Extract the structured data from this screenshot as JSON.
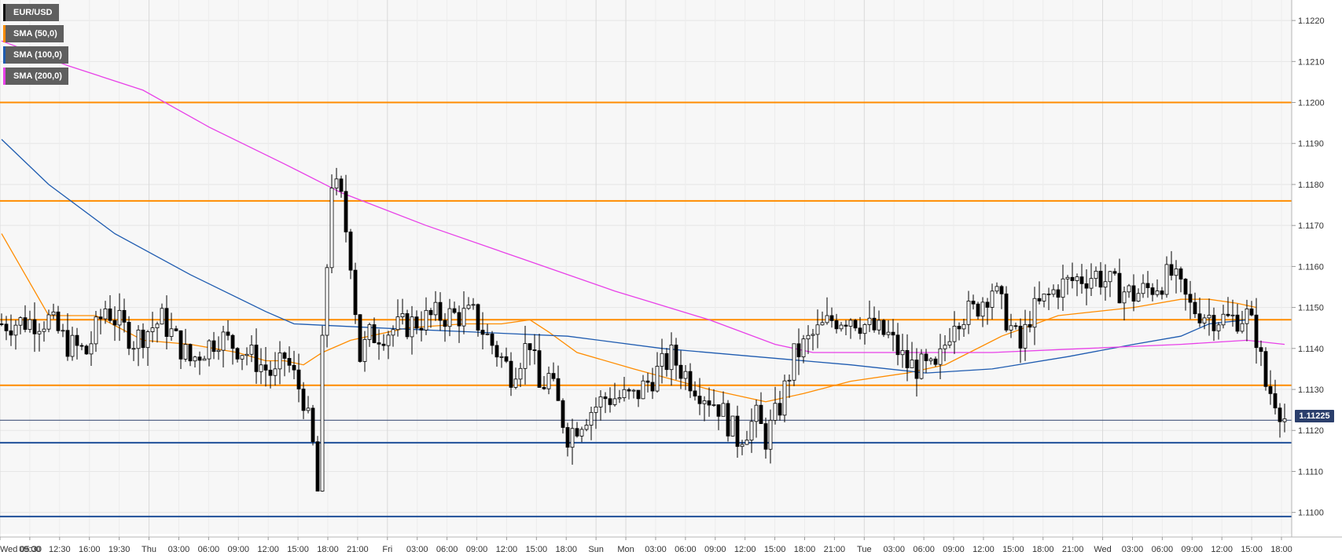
{
  "legend": [
    {
      "label": "EUR/USD",
      "color": "#000000"
    },
    {
      "label": "SMA (50,0)",
      "color": "#ff8c00"
    },
    {
      "label": "SMA (100,0)",
      "color": "#1e5bb0"
    },
    {
      "label": "SMA (200,0)",
      "color": "#e840e8"
    }
  ],
  "current_price_label": "1.11225",
  "colors": {
    "resistance": "#ff8c00",
    "support": "#1f4f99",
    "sma50": "#ff8c00",
    "sma100": "#1e5bb0",
    "sma200": "#e840e8",
    "candle_up": "#ffffff",
    "candle_down": "#000000",
    "grid": "#e6e6e6"
  },
  "chart_data": {
    "type": "candlestick",
    "title": "",
    "xlabel": "",
    "ylabel": "",
    "ylim": [
      1.1094,
      1.1225
    ],
    "y_ticks": [
      "1.1100",
      "1.1110",
      "1.1120",
      "1.1130",
      "1.1140",
      "1.1150",
      "1.1160",
      "1.1170",
      "1.1180",
      "1.1190",
      "1.1200",
      "1.1210",
      "1.1220"
    ],
    "x_tick_labels": [
      "Wed 05:30",
      "09:00",
      "12:30",
      "16:00",
      "19:30",
      "Thu",
      "03:00",
      "06:00",
      "09:00",
      "12:00",
      "15:00",
      "18:00",
      "21:00",
      "Fri",
      "03:00",
      "06:00",
      "09:00",
      "12:00",
      "15:00",
      "18:00",
      "Sun",
      "Mon",
      "03:00",
      "06:00",
      "09:00",
      "12:00",
      "15:00",
      "18:00",
      "21:00",
      "Tue",
      "03:00",
      "06:00",
      "09:00",
      "12:00",
      "15:00",
      "18:00",
      "21:00",
      "Wed",
      "03:00",
      "06:00",
      "09:00",
      "12:00",
      "15:00",
      "18:00"
    ],
    "horizontal_levels": [
      {
        "price": 1.12,
        "kind": "resistance"
      },
      {
        "price": 1.1176,
        "kind": "resistance"
      },
      {
        "price": 1.1147,
        "kind": "resistance"
      },
      {
        "price": 1.1131,
        "kind": "resistance"
      },
      {
        "price": 1.11225,
        "kind": "current"
      },
      {
        "price": 1.1117,
        "kind": "support"
      },
      {
        "price": 1.1099,
        "kind": "support"
      }
    ],
    "price_anchors": [
      [
        0,
        1.1146
      ],
      [
        10,
        1.1147
      ],
      [
        14,
        1.1141
      ],
      [
        18,
        1.1139
      ],
      [
        22,
        1.115
      ],
      [
        28,
        1.1142
      ],
      [
        34,
        1.1147
      ],
      [
        40,
        1.1137
      ],
      [
        46,
        1.1143
      ],
      [
        52,
        1.1139
      ],
      [
        58,
        1.1133
      ],
      [
        60,
        1.1138
      ],
      [
        64,
        1.1128
      ],
      [
        66,
        1.1116
      ],
      [
        67,
        1.1105
      ],
      [
        68,
        1.114
      ],
      [
        70,
        1.1181
      ],
      [
        72,
        1.1176
      ],
      [
        74,
        1.1162
      ],
      [
        76,
        1.1138
      ],
      [
        78,
        1.1143
      ],
      [
        84,
        1.1145
      ],
      [
        92,
        1.1148
      ],
      [
        100,
        1.1148
      ],
      [
        104,
        1.1141
      ],
      [
        108,
        1.1134
      ],
      [
        112,
        1.1142
      ],
      [
        114,
        1.113
      ],
      [
        116,
        1.1133
      ],
      [
        120,
        1.1119
      ],
      [
        124,
        1.1124
      ],
      [
        128,
        1.1128
      ],
      [
        134,
        1.1128
      ],
      [
        138,
        1.1133
      ],
      [
        142,
        1.1138
      ],
      [
        144,
        1.1135
      ],
      [
        148,
        1.113
      ],
      [
        152,
        1.1126
      ],
      [
        156,
        1.1118
      ],
      [
        160,
        1.1123
      ],
      [
        162,
        1.1118
      ],
      [
        165,
        1.1126
      ],
      [
        168,
        1.1138
      ],
      [
        172,
        1.1143
      ],
      [
        176,
        1.1147
      ],
      [
        180,
        1.1148
      ],
      [
        184,
        1.1145
      ],
      [
        188,
        1.1143
      ],
      [
        192,
        1.1136
      ],
      [
        196,
        1.1135
      ],
      [
        198,
        1.1134
      ],
      [
        202,
        1.1148
      ],
      [
        206,
        1.1149
      ],
      [
        210,
        1.1155
      ],
      [
        214,
        1.1145
      ],
      [
        216,
        1.114
      ],
      [
        218,
        1.1148
      ],
      [
        224,
        1.1155
      ],
      [
        228,
        1.1157
      ],
      [
        232,
        1.1158
      ],
      [
        236,
        1.1155
      ],
      [
        240,
        1.1153
      ],
      [
        244,
        1.1155
      ],
      [
        248,
        1.1158
      ],
      [
        252,
        1.115
      ],
      [
        256,
        1.1148
      ],
      [
        260,
        1.1147
      ],
      [
        264,
        1.1148
      ],
      [
        266,
        1.1143
      ],
      [
        268,
        1.1131
      ],
      [
        270,
        1.1128
      ],
      [
        272,
        1.1123
      ]
    ],
    "series": [
      {
        "name": "SMA (50,0)",
        "points": [
          [
            0,
            1.1168
          ],
          [
            10,
            1.1148
          ],
          [
            20,
            1.1148
          ],
          [
            30,
            1.1142
          ],
          [
            40,
            1.1141
          ],
          [
            50,
            1.1139
          ],
          [
            56,
            1.1137
          ],
          [
            60,
            1.1137
          ],
          [
            64,
            1.1136
          ],
          [
            68,
            1.1139
          ],
          [
            74,
            1.1142
          ],
          [
            86,
            1.1145
          ],
          [
            98,
            1.1146
          ],
          [
            106,
            1.1146
          ],
          [
            112,
            1.1147
          ],
          [
            116,
            1.1144
          ],
          [
            122,
            1.1139
          ],
          [
            134,
            1.1135
          ],
          [
            150,
            1.113
          ],
          [
            162,
            1.1127
          ],
          [
            170,
            1.1129
          ],
          [
            180,
            1.1132
          ],
          [
            192,
            1.1134
          ],
          [
            200,
            1.1136
          ],
          [
            212,
            1.1143
          ],
          [
            224,
            1.1148
          ],
          [
            240,
            1.115
          ],
          [
            250,
            1.1152
          ],
          [
            256,
            1.1152
          ],
          [
            262,
            1.1151
          ],
          [
            266,
            1.115
          ]
        ]
      },
      {
        "name": "SMA (100,0)",
        "points": [
          [
            0,
            1.1191
          ],
          [
            10,
            1.118
          ],
          [
            24,
            1.1168
          ],
          [
            40,
            1.1158
          ],
          [
            56,
            1.1149
          ],
          [
            62,
            1.1146
          ],
          [
            80,
            1.1145
          ],
          [
            100,
            1.1144
          ],
          [
            120,
            1.1143
          ],
          [
            140,
            1.114
          ],
          [
            160,
            1.1138
          ],
          [
            180,
            1.1136
          ],
          [
            196,
            1.1134
          ],
          [
            210,
            1.1135
          ],
          [
            226,
            1.1138
          ],
          [
            240,
            1.1141
          ],
          [
            250,
            1.1143
          ],
          [
            256,
            1.1146
          ],
          [
            264,
            1.1147
          ]
        ]
      },
      {
        "name": "SMA (200,0)",
        "points": [
          [
            0,
            1.1215
          ],
          [
            14,
            1.1209
          ],
          [
            30,
            1.1203
          ],
          [
            44,
            1.1194
          ],
          [
            60,
            1.1185
          ],
          [
            72,
            1.1178
          ],
          [
            90,
            1.117
          ],
          [
            110,
            1.1162
          ],
          [
            130,
            1.1154
          ],
          [
            150,
            1.1147
          ],
          [
            164,
            1.1141
          ],
          [
            172,
            1.1139
          ],
          [
            190,
            1.1139
          ],
          [
            210,
            1.1139
          ],
          [
            230,
            1.114
          ],
          [
            250,
            1.1141
          ],
          [
            264,
            1.1142
          ],
          [
            272,
            1.1141
          ]
        ]
      }
    ]
  }
}
